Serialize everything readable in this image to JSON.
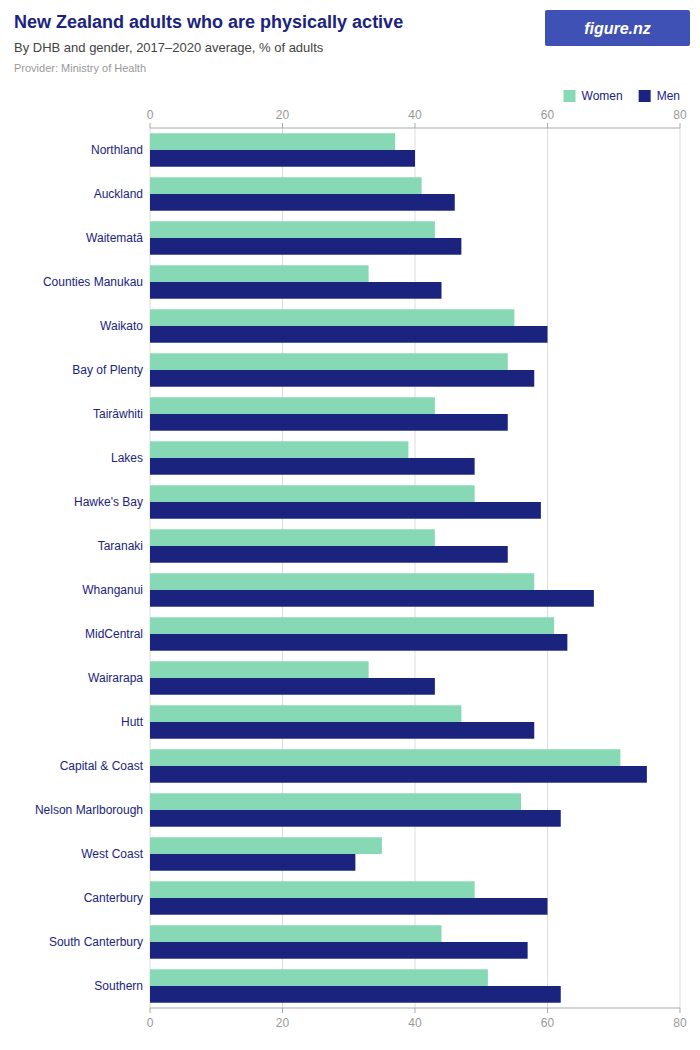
{
  "chart_data": {
    "type": "bar",
    "orientation": "horizontal",
    "title": "New Zealand adults who are physically active",
    "subtitle": "By DHB and gender, 2017–2020 average, % of adults",
    "annotations": [
      "Provider: Ministry of Health",
      "figure.nz"
    ],
    "categories": [
      "Northland",
      "Auckland",
      "Waitematā",
      "Counties Manukau",
      "Waikato",
      "Bay of Plenty",
      "Tairāwhiti",
      "Lakes",
      "Hawke's Bay",
      "Taranaki",
      "Whanganui",
      "MidCentral",
      "Wairarapa",
      "Hutt",
      "Capital & Coast",
      "Nelson Marlborough",
      "West Coast",
      "Canterbury",
      "South Canterbury",
      "Southern"
    ],
    "series": [
      {
        "name": "Women",
        "color": "#86d9b4",
        "values": [
          37,
          41,
          43,
          33,
          55,
          54,
          43,
          39,
          49,
          43,
          58,
          61,
          33,
          47,
          71,
          56,
          35,
          49,
          44,
          51
        ]
      },
      {
        "name": "Men",
        "color": "#1a237e",
        "values": [
          40,
          46,
          47,
          44,
          60,
          58,
          54,
          49,
          59,
          54,
          67,
          63,
          43,
          58,
          75,
          62,
          31,
          60,
          57,
          62
        ]
      }
    ],
    "xlim": [
      0,
      80
    ],
    "xticks": [
      0,
      20,
      40,
      60,
      80
    ],
    "grid": true,
    "legend": "upper right"
  }
}
